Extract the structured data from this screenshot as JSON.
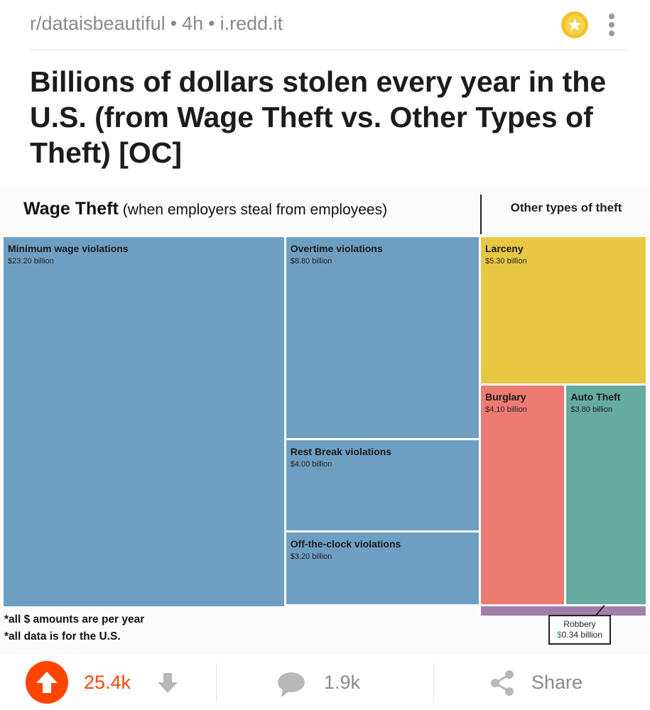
{
  "post": {
    "subreddit": "r/dataisbeautiful",
    "age": "4h",
    "domain": "i.redd.it",
    "separator": "•",
    "title": "Billions of dollars stolen every year in the U.S. (from Wage Theft vs. Other Types of Theft) [OC]",
    "award_icon": "star-award-icon",
    "menu_icon": "more-vertical-icon"
  },
  "chart_data": {
    "type": "treemap",
    "groups": [
      {
        "name": "Wage Theft",
        "subtitle": "(when employers steal from employees)",
        "color": "#6e9fc3",
        "items": [
          {
            "label": "Minimum wage violations",
            "value_text": "$23.20 billion",
            "value": 23.2
          },
          {
            "label": "Overtime violations",
            "value_text": "$8.80 billion",
            "value": 8.8
          },
          {
            "label": "Rest Break violations",
            "value_text": "$4.00 billion",
            "value": 4.0
          },
          {
            "label": "Off-the-clock violations",
            "value_text": "$3.20 billion",
            "value": 3.2
          }
        ]
      },
      {
        "name": "Other types of theft",
        "items": [
          {
            "label": "Larceny",
            "value_text": "$5.30 billion",
            "value": 5.3,
            "color": "#e8c843"
          },
          {
            "label": "Burglary",
            "value_text": "$4.10 billion",
            "value": 4.1,
            "color": "#ec7b72"
          },
          {
            "label": "Auto Theft",
            "value_text": "$3.80 billion",
            "value": 3.8,
            "color": "#65aba0"
          },
          {
            "label": "Robbery",
            "value_text": "$0.34 billion",
            "value": 0.34,
            "color": "#a27eab"
          }
        ]
      }
    ],
    "footnotes": [
      "*all $ amounts are per year",
      "*all data is for the U.S."
    ],
    "callout": {
      "label": "Robbery",
      "currency": "$",
      "amount": "0.34 billion"
    }
  },
  "actions": {
    "score": "25.4k",
    "comments": "1.9k",
    "share_label": "Share",
    "upvote_icon": "upvote-arrow-icon",
    "downvote_icon": "downvote-arrow-icon",
    "comment_icon": "comment-bubble-icon",
    "share_icon": "share-icon",
    "accent_color": "#ff4500"
  }
}
